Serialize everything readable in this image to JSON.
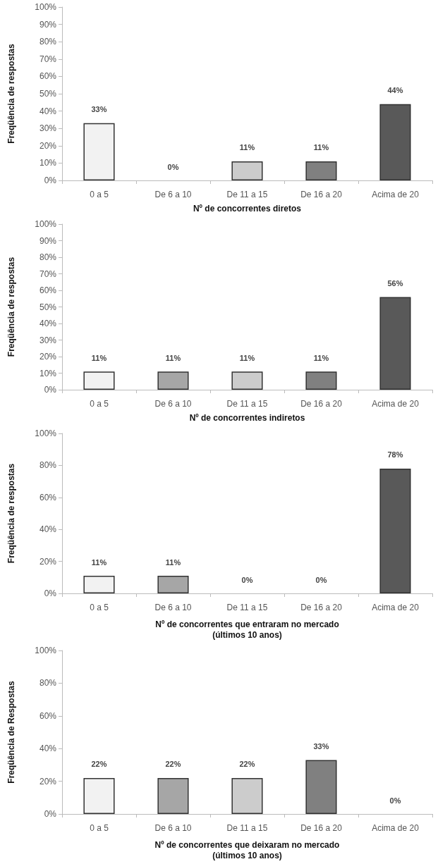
{
  "chart_data": [
    {
      "type": "bar",
      "xlabel": "Nº de concorrentes diretos",
      "ylabel": "Freqüência de respostas",
      "categories": [
        "0 a 5",
        "De 6 a 10",
        "De 11 a 15",
        "De 16 a 20",
        "Acima de 20"
      ],
      "values": [
        33,
        0,
        11,
        11,
        44
      ],
      "value_labels": [
        "33%",
        "0%",
        "11%",
        "11%",
        "44%"
      ],
      "colors": [
        "#f2f2f2",
        null,
        "#cccccc",
        "#808080",
        "#595959"
      ],
      "ylim": [
        0,
        100
      ],
      "yticks": [
        {
          "value": 0,
          "label": "0%"
        },
        {
          "value": 10,
          "label": "10%"
        },
        {
          "value": 20,
          "label": "20%"
        },
        {
          "value": 30,
          "label": "30%"
        },
        {
          "value": 40,
          "label": "40%"
        },
        {
          "value": 50,
          "label": "50%"
        },
        {
          "value": 60,
          "label": "60%"
        },
        {
          "value": 70,
          "label": "70%"
        },
        {
          "value": 80,
          "label": "80%"
        },
        {
          "value": 90,
          "label": "90%"
        },
        {
          "value": 100,
          "label": "100%"
        }
      ],
      "grid": false
    },
    {
      "type": "bar",
      "xlabel": "Nº de concorrentes indiretos",
      "ylabel": "Freqüência de respostas",
      "categories": [
        "0 a 5",
        "De 6 a 10",
        "De 11 a 15",
        "De 16 a 20",
        "Acima de 20"
      ],
      "values": [
        11,
        11,
        11,
        11,
        56
      ],
      "value_labels": [
        "11%",
        "11%",
        "11%",
        "11%",
        "56%"
      ],
      "colors": [
        "#f2f2f2",
        "#a6a6a6",
        "#cccccc",
        "#808080",
        "#595959"
      ],
      "ylim": [
        0,
        100
      ],
      "yticks": [
        {
          "value": 0,
          "label": "0%"
        },
        {
          "value": 10,
          "label": "10%"
        },
        {
          "value": 20,
          "label": "20%"
        },
        {
          "value": 30,
          "label": "30%"
        },
        {
          "value": 40,
          "label": "40%"
        },
        {
          "value": 50,
          "label": "50%"
        },
        {
          "value": 60,
          "label": "60%"
        },
        {
          "value": 70,
          "label": "70%"
        },
        {
          "value": 80,
          "label": "80%"
        },
        {
          "value": 90,
          "label": "90%"
        },
        {
          "value": 100,
          "label": "100%"
        }
      ],
      "grid": false
    },
    {
      "type": "bar",
      "xlabel": "Nº de concorrentes que entraram no mercado\n(últimos 10 anos)",
      "ylabel": "Freqüência de respostas",
      "categories": [
        "0 a 5",
        "De 6 a 10",
        "De 11 a 15",
        "De 16 a 20",
        "Acima de 20"
      ],
      "values": [
        11,
        11,
        0,
        0,
        78
      ],
      "value_labels": [
        "11%",
        "11%",
        "0%",
        "0%",
        "78%"
      ],
      "colors": [
        "#f2f2f2",
        "#a6a6a6",
        null,
        null,
        "#595959"
      ],
      "ylim": [
        0,
        100
      ],
      "yticks": [
        {
          "value": 0,
          "label": "0%"
        },
        {
          "value": 20,
          "label": "20%"
        },
        {
          "value": 40,
          "label": "40%"
        },
        {
          "value": 60,
          "label": "60%"
        },
        {
          "value": 80,
          "label": "80%"
        },
        {
          "value": 100,
          "label": "100%"
        }
      ],
      "grid": false
    },
    {
      "type": "bar",
      "xlabel": "Nº de concorrentes que deixaram no mercado\n(últimos 10 anos)",
      "ylabel": "Freqüência de Respostas",
      "categories": [
        "0 a 5",
        "De 6 a 10",
        "De 11 a 15",
        "De 16 a 20",
        "Acima de 20"
      ],
      "values": [
        22,
        22,
        22,
        33,
        0
      ],
      "value_labels": [
        "22%",
        "22%",
        "22%",
        "33%",
        "0%"
      ],
      "colors": [
        "#f2f2f2",
        "#a6a6a6",
        "#cccccc",
        "#808080",
        null
      ],
      "ylim": [
        0,
        100
      ],
      "yticks": [
        {
          "value": 0,
          "label": "0%"
        },
        {
          "value": 20,
          "label": "20%"
        },
        {
          "value": 40,
          "label": "40%"
        },
        {
          "value": 60,
          "label": "60%"
        },
        {
          "value": 80,
          "label": "80%"
        },
        {
          "value": 100,
          "label": "100%"
        }
      ],
      "grid": false
    }
  ]
}
